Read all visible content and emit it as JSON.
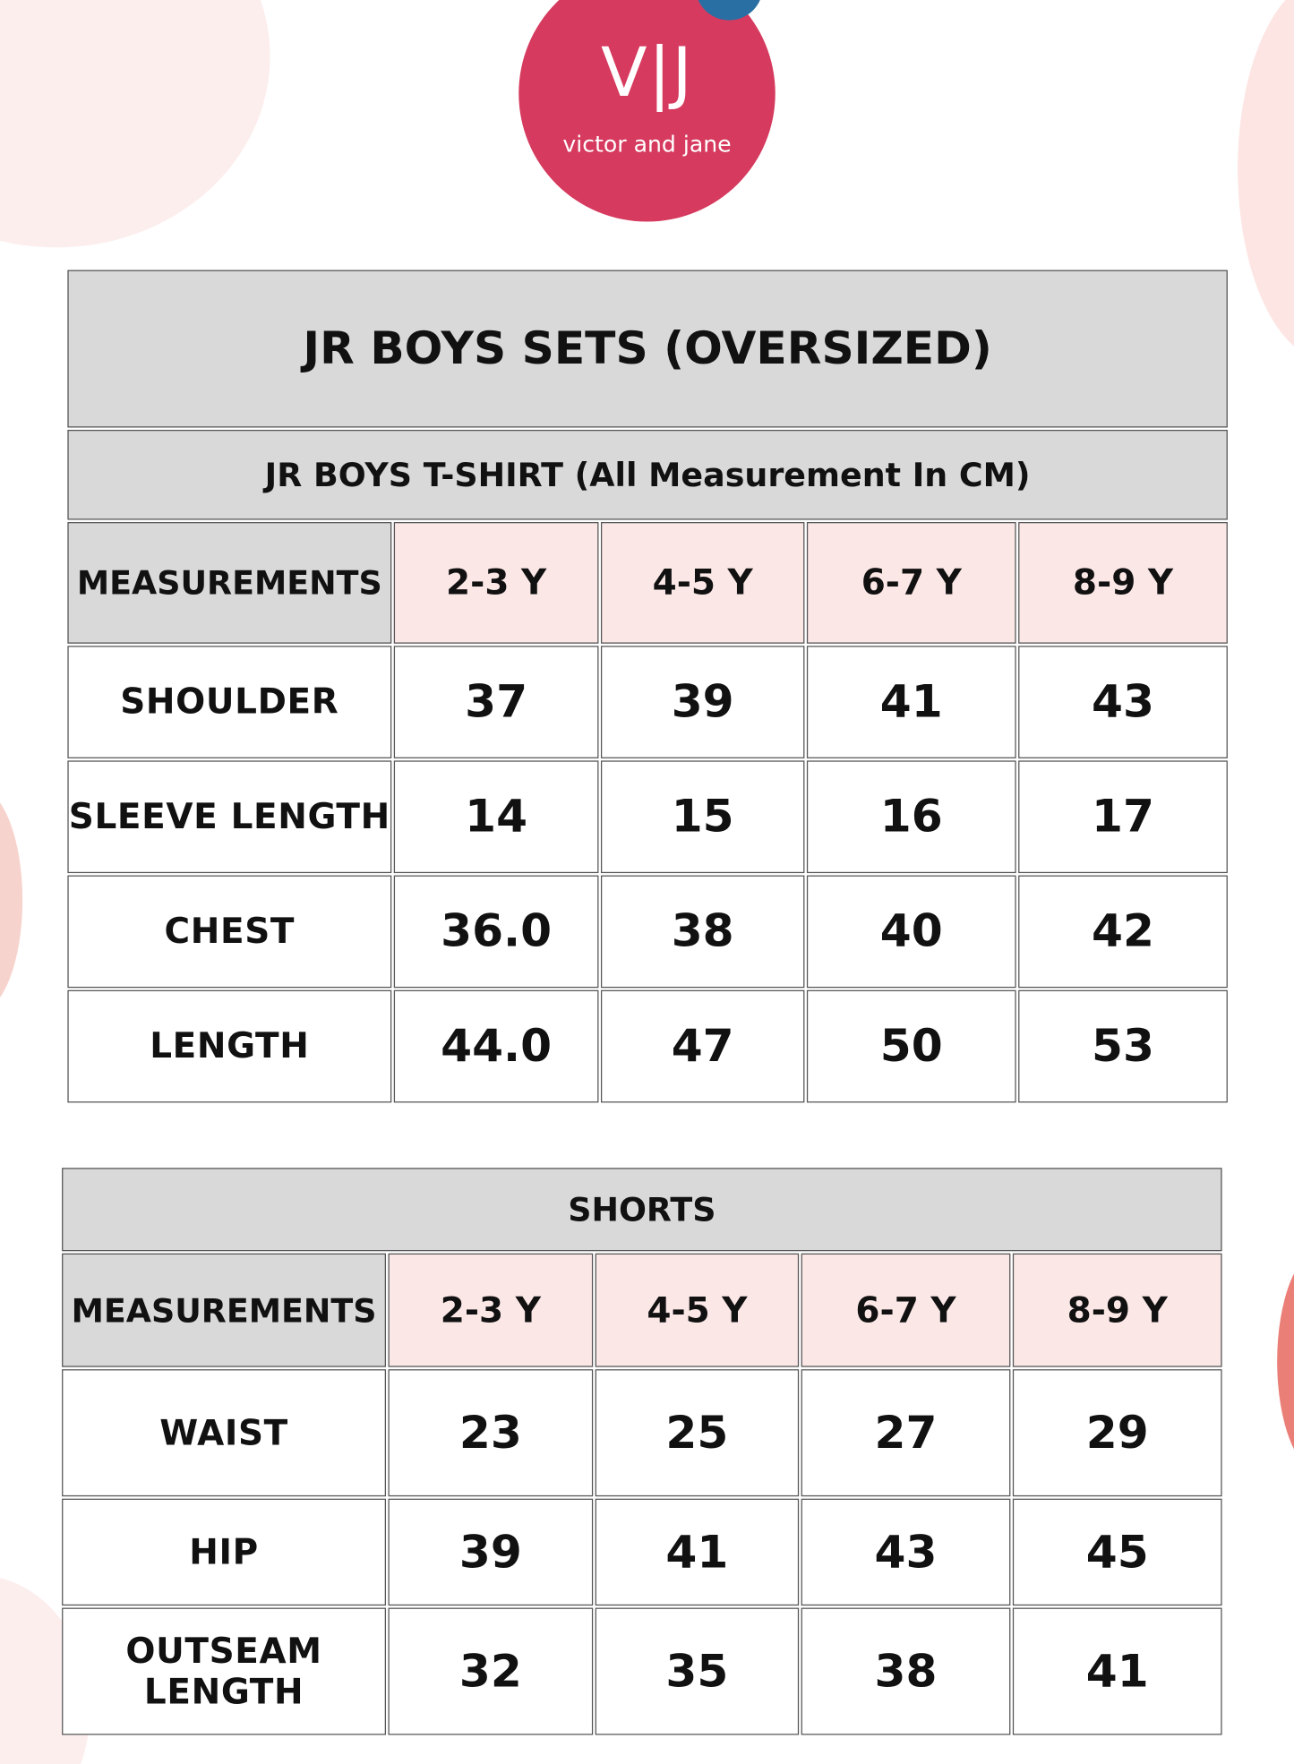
{
  "brand": {
    "mark": "V|J",
    "name": "victor and jane",
    "color": "#d63a5e",
    "accent": "#2a6fa3"
  },
  "tshirt": {
    "title": "JR BOYS SETS (OVERSIZED)",
    "subtitle": "JR BOYS T-SHIRT (All Measurement In CM)",
    "header": [
      "MEASUREMENTS",
      "2-3 Y",
      "4-5 Y",
      "6-7 Y",
      "8-9 Y"
    ],
    "rows": [
      {
        "label": "SHOULDER",
        "values": [
          "37",
          "39",
          "41",
          "43"
        ]
      },
      {
        "label": "SLEEVE LENGTH",
        "values": [
          "14",
          "15",
          "16",
          "17"
        ]
      },
      {
        "label": "CHEST",
        "values": [
          "36.0",
          "38",
          "40",
          "42"
        ]
      },
      {
        "label": "LENGTH",
        "values": [
          "44.0",
          "47",
          "50",
          "53"
        ]
      }
    ]
  },
  "shorts": {
    "title": "SHORTS",
    "header": [
      "MEASUREMENTS",
      "2-3 Y",
      "4-5 Y",
      "6-7 Y",
      "8-9 Y"
    ],
    "rows": [
      {
        "label": "WAIST",
        "values": [
          "23",
          "25",
          "27",
          "29"
        ]
      },
      {
        "label": "HIP",
        "values": [
          "39",
          "41",
          "43",
          "45"
        ]
      },
      {
        "label": "OUTSEAM LENGTH",
        "values": [
          "32",
          "35",
          "38",
          "41"
        ]
      }
    ]
  },
  "colors": {
    "header_gray": "#d9d9d9",
    "size_pink": "#fbe7e6"
  }
}
